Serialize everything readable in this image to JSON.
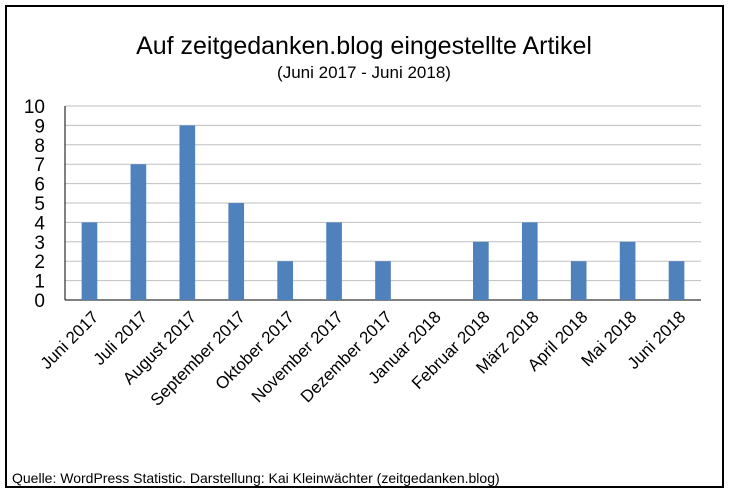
{
  "chart_data": {
    "type": "bar",
    "title": "Auf zeitgedanken.blog eingestellte Artikel",
    "subtitle": "(Juni 2017 - Juni 2018)",
    "categories": [
      "Juni 2017",
      "Juli 2017",
      "August 2017",
      "September 2017",
      "Oktober 2017",
      "November 2017",
      "Dezember 2017",
      "Januar 2018",
      "Februar 2018",
      "März 2018",
      "April 2018",
      "Mai 2018",
      "Juni 2018"
    ],
    "values": [
      4,
      7,
      9,
      5,
      2,
      4,
      2,
      0,
      3,
      4,
      2,
      3,
      2
    ],
    "ylim": [
      0,
      10
    ],
    "yticks": [
      0,
      1,
      2,
      3,
      4,
      5,
      6,
      7,
      8,
      9,
      10
    ],
    "xlabel": "",
    "ylabel": "",
    "grid": true,
    "bar_color": "#4f81bd",
    "source": "Quelle: WordPress Statistic. Darstellung: Kai Kleinwächter (zeitgedanken.blog)"
  }
}
